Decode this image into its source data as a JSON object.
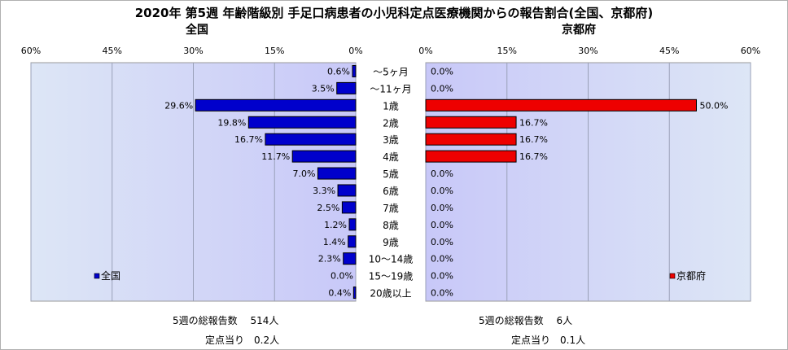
{
  "chart_data": {
    "type": "bar",
    "title": "2020年 第5週 年齢階級別 手足口病患者の小児科定点医療機関からの報告割合(全国、京都府)",
    "categories": [
      "～5ヶ月",
      "～11ヶ月",
      "1歳",
      "2歳",
      "3歳",
      "4歳",
      "5歳",
      "6歳",
      "7歳",
      "8歳",
      "9歳",
      "10～14歳",
      "15～19歳",
      "20歳以上"
    ],
    "panels": [
      {
        "subtitle": "全国",
        "legend": "全国",
        "legend_position": "bottom-left",
        "bar_color": "#0000cc",
        "direction": "left",
        "xlim": [
          0,
          60
        ],
        "ticks": [
          "60%",
          "45%",
          "30%",
          "15%",
          "0%"
        ],
        "values": [
          0.6,
          3.5,
          29.6,
          19.8,
          16.7,
          11.7,
          7.0,
          3.3,
          2.5,
          1.2,
          1.4,
          2.3,
          0.0,
          0.4
        ],
        "labels": [
          "0.6%",
          "3.5%",
          "29.6%",
          "19.8%",
          "16.7%",
          "11.7%",
          "7.0%",
          "3.3%",
          "2.5%",
          "1.2%",
          "1.4%",
          "2.3%",
          "0.0%",
          "0.4%"
        ]
      },
      {
        "subtitle": "京都府",
        "legend": "京都府",
        "legend_position": "bottom-right",
        "bar_color": "#ee0000",
        "direction": "right",
        "xlim": [
          0,
          60
        ],
        "ticks": [
          "0%",
          "15%",
          "30%",
          "45%",
          "60%"
        ],
        "values": [
          0.0,
          0.0,
          50.0,
          16.7,
          16.7,
          16.7,
          0.0,
          0.0,
          0.0,
          0.0,
          0.0,
          0.0,
          0.0,
          0.0
        ],
        "labels": [
          "0.0%",
          "0.0%",
          "50.0%",
          "16.7%",
          "16.7%",
          "16.7%",
          "0.0%",
          "0.0%",
          "0.0%",
          "0.0%",
          "0.0%",
          "0.0%",
          "0.0%",
          "0.0%"
        ]
      }
    ]
  },
  "footer": {
    "left_total": "5週の総報告数　 514人",
    "left_per": "定点当り　0.2人",
    "right_total": "5週の総報告数　 6人",
    "right_per": "定点当り　0.1人"
  }
}
